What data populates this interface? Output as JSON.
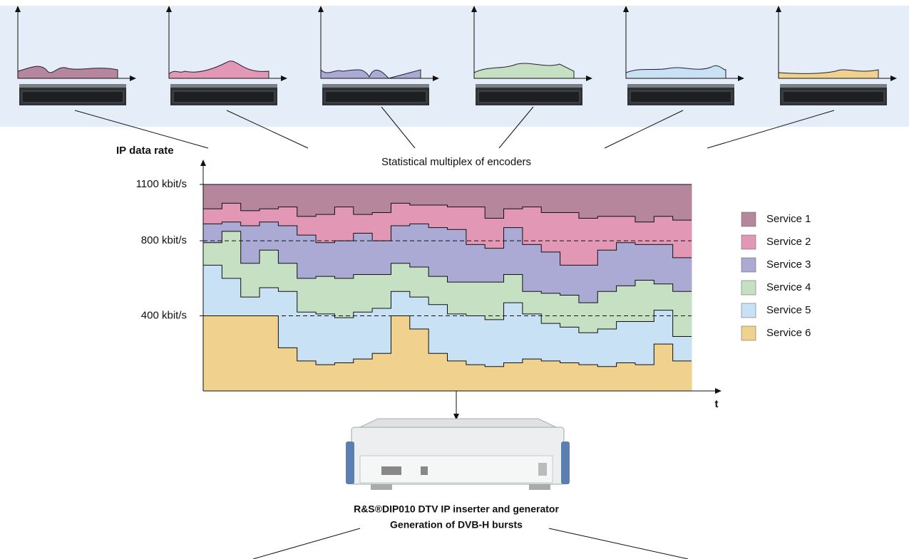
{
  "chart_data": {
    "type": "area",
    "stacked": true,
    "step": true,
    "y_label": "IP data rate",
    "x_label": "t",
    "ylim": [
      0,
      1100
    ],
    "yticks": [
      {
        "value": 400,
        "label": "400 kbit/s"
      },
      {
        "value": 800,
        "label": "800 kbit/s"
      },
      {
        "value": 1100,
        "label": "1100 kbit/s"
      }
    ],
    "grid": true,
    "legend": "right",
    "series": [
      {
        "name": "Service 6",
        "color": "#f0d28e",
        "values": [
          400,
          400,
          400,
          400,
          230,
          160,
          140,
          150,
          170,
          200,
          400,
          330,
          200,
          160,
          140,
          130,
          150,
          170,
          160,
          150,
          140,
          130,
          150,
          140,
          250,
          160
        ]
      },
      {
        "name": "Service 5",
        "color": "#c8e1f5",
        "values": [
          270,
          200,
          100,
          150,
          300,
          260,
          270,
          240,
          250,
          240,
          130,
          170,
          260,
          250,
          260,
          250,
          320,
          240,
          200,
          190,
          170,
          200,
          220,
          230,
          180,
          130
        ]
      },
      {
        "name": "Service 4",
        "color": "#c6e0c4",
        "values": [
          120,
          250,
          180,
          200,
          150,
          180,
          200,
          210,
          200,
          180,
          150,
          160,
          150,
          170,
          180,
          200,
          150,
          120,
          160,
          170,
          160,
          200,
          190,
          220,
          140,
          240
        ]
      },
      {
        "name": "Service 3",
        "color": "#abaad4",
        "values": [
          100,
          50,
          200,
          150,
          200,
          230,
          180,
          200,
          220,
          180,
          200,
          230,
          260,
          280,
          200,
          180,
          250,
          250,
          220,
          160,
          200,
          220,
          230,
          190,
          210,
          180
        ]
      },
      {
        "name": "Service 2",
        "color": "#e298b5",
        "values": [
          80,
          100,
          80,
          70,
          100,
          100,
          150,
          180,
          100,
          150,
          120,
          100,
          120,
          120,
          200,
          160,
          100,
          200,
          210,
          280,
          250,
          180,
          140,
          120,
          150,
          200
        ]
      },
      {
        "name": "Service 1",
        "color": "#b6869d",
        "values": [
          130,
          100,
          140,
          130,
          120,
          170,
          160,
          120,
          160,
          150,
          100,
          110,
          110,
          120,
          120,
          180,
          130,
          120,
          150,
          150,
          180,
          170,
          170,
          200,
          170,
          190
        ]
      }
    ]
  },
  "diagram": {
    "top_label": "Statistical multiplex of encoders",
    "device_label": "R&S®DIP010 DTV IP inserter and generator",
    "device_sublabel": "Generation of DVB-H bursts"
  }
}
